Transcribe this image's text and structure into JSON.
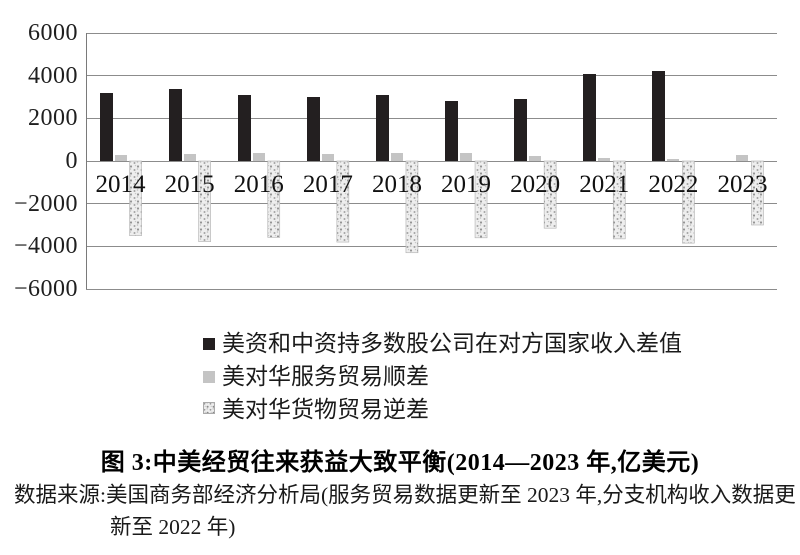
{
  "chart_data": {
    "type": "bar",
    "title": "图 3:中美经贸往来获益大致平衡(2014—2023 年,亿美元)",
    "unit": "亿美元",
    "categories": [
      "2014",
      "2015",
      "2016",
      "2017",
      "2018",
      "2019",
      "2020",
      "2021",
      "2022",
      "2023"
    ],
    "series": [
      {
        "name": "美资和中资持多数股公司在对方国家收入差值",
        "style": "solid-black",
        "color": "#231f20",
        "values": [
          3200,
          3380,
          3100,
          3000,
          3100,
          2820,
          2900,
          4100,
          4200,
          null
        ]
      },
      {
        "name": "美对华服务贸易顺差",
        "style": "solid-gray",
        "color": "#c4c4c4",
        "values": [
          280,
          310,
          360,
          330,
          360,
          370,
          230,
          140,
          100,
          260
        ]
      },
      {
        "name": "美对华货物贸易逆差",
        "style": "speckled",
        "color": "#ededed",
        "values": [
          -3500,
          -3780,
          -3580,
          -3800,
          -4300,
          -3600,
          -3150,
          -3650,
          -3850,
          -3000
        ]
      }
    ],
    "ylim": [
      -6000,
      6000
    ],
    "ytick_labels": [
      "6000",
      "4000",
      "2000",
      "0",
      "−2000",
      "−4000",
      "−6000"
    ],
    "grid": true,
    "legend_position": "bottom-left"
  },
  "caption": "图 3:中美经贸往来获益大致平衡(2014—2023 年,亿美元)",
  "source": {
    "line1": "数据来源:美国商务部经济分析局(服务贸易数据更新至 2023 年,分支机构收入数据更",
    "line2": "新至 2022 年)"
  }
}
